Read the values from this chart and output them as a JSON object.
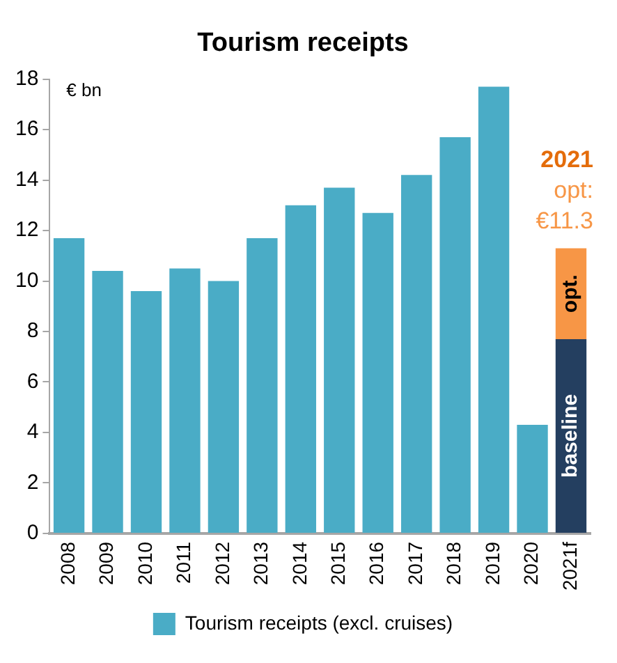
{
  "chart_data": {
    "type": "bar",
    "title": "Tourism receipts",
    "ylabel": "€ bn",
    "categories": [
      "2008",
      "2009",
      "2010",
      "2011",
      "2012",
      "2013",
      "2014",
      "2015",
      "2016",
      "2017",
      "2018",
      "2019",
      "2020",
      "2021f"
    ],
    "series": [
      {
        "name": "Tourism receipts (excl. cruises)",
        "color": "#4aacc6",
        "values": [
          11.7,
          10.4,
          9.6,
          10.5,
          10.0,
          11.7,
          13.0,
          13.7,
          12.7,
          14.2,
          15.7,
          17.7,
          4.3,
          null
        ]
      },
      {
        "name": "baseline",
        "color": "#243f60",
        "values": [
          null,
          null,
          null,
          null,
          null,
          null,
          null,
          null,
          null,
          null,
          null,
          null,
          null,
          7.7
        ]
      },
      {
        "name": "opt.",
        "color": "#f79646",
        "values": [
          null,
          null,
          null,
          null,
          null,
          null,
          null,
          null,
          null,
          null,
          null,
          null,
          null,
          3.6
        ]
      }
    ],
    "stacked": true,
    "ylim": [
      0,
      18
    ],
    "yticks": [
      0,
      2,
      4,
      6,
      8,
      10,
      12,
      14,
      16,
      18
    ],
    "grid": false,
    "legend": "bottom",
    "annotations": [
      {
        "text": "2021\nopt:\n€11.3",
        "x": "2021f",
        "y": 11.3
      }
    ]
  }
}
